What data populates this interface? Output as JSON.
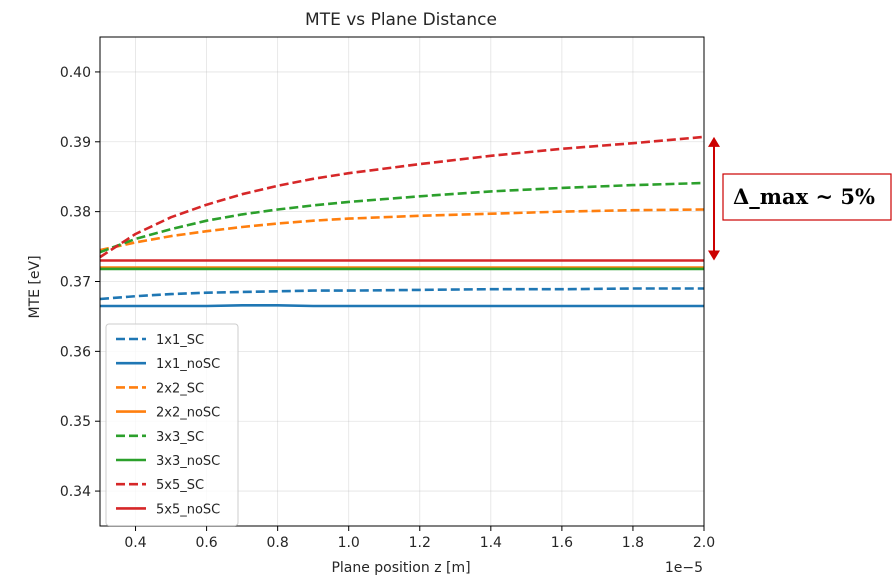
{
  "chart_data": {
    "type": "line",
    "title": "MTE vs Plane Distance",
    "xlabel": "Plane position z [m]",
    "ylabel": "MTE [eV]",
    "x_offset_label": "1e−5",
    "xlim": [
      0.3,
      2.0
    ],
    "ylim": [
      0.335,
      0.405
    ],
    "xticks": [
      0.4,
      0.6,
      0.8,
      1.0,
      1.2,
      1.4,
      1.6,
      1.8,
      2.0
    ],
    "xtick_labels": [
      "0.4",
      "0.6",
      "0.8",
      "1.0",
      "1.2",
      "1.4",
      "1.6",
      "1.8",
      "2.0"
    ],
    "yticks": [
      0.34,
      0.35,
      0.36,
      0.37,
      0.38,
      0.39,
      0.4
    ],
    "ytick_labels": [
      "0.34",
      "0.35",
      "0.36",
      "0.37",
      "0.38",
      "0.39",
      "0.40"
    ],
    "grid": true,
    "legend_position": "lower-left",
    "x": [
      0.3,
      0.4,
      0.5,
      0.6,
      0.7,
      0.8,
      0.9,
      1.0,
      1.2,
      1.4,
      1.6,
      1.8,
      2.0
    ],
    "series": [
      {
        "name": "1x1_SC",
        "color": "#1f77b4",
        "dash": "dashed",
        "values": [
          0.3675,
          0.3679,
          0.3682,
          0.3684,
          0.3685,
          0.3686,
          0.3687,
          0.3687,
          0.3688,
          0.3689,
          0.3689,
          0.369,
          0.369
        ]
      },
      {
        "name": "1x1_noSC",
        "color": "#1f77b4",
        "dash": "solid",
        "values": [
          0.3665,
          0.3665,
          0.3665,
          0.3665,
          0.3666,
          0.3666,
          0.3665,
          0.3665,
          0.3665,
          0.3665,
          0.3665,
          0.3665,
          0.3665
        ]
      },
      {
        "name": "2x2_SC",
        "color": "#ff7f0e",
        "dash": "dashed",
        "values": [
          0.3745,
          0.3756,
          0.3765,
          0.3772,
          0.3778,
          0.3783,
          0.3787,
          0.379,
          0.3794,
          0.3797,
          0.38,
          0.3802,
          0.3803
        ]
      },
      {
        "name": "2x2_noSC",
        "color": "#ff7f0e",
        "dash": "solid",
        "values": [
          0.372,
          0.372,
          0.372,
          0.372,
          0.372,
          0.372,
          0.372,
          0.372,
          0.372,
          0.372,
          0.372,
          0.372,
          0.372
        ]
      },
      {
        "name": "3x3_SC",
        "color": "#2ca02c",
        "dash": "dashed",
        "values": [
          0.3742,
          0.3761,
          0.3775,
          0.3787,
          0.3796,
          0.3803,
          0.3809,
          0.3814,
          0.3822,
          0.3829,
          0.3834,
          0.3838,
          0.3841
        ]
      },
      {
        "name": "3x3_noSC",
        "color": "#2ca02c",
        "dash": "solid",
        "values": [
          0.3718,
          0.3718,
          0.3718,
          0.3718,
          0.3718,
          0.3718,
          0.3718,
          0.3718,
          0.3718,
          0.3718,
          0.3718,
          0.3718,
          0.3718
        ]
      },
      {
        "name": "5x5_SC",
        "color": "#d62728",
        "dash": "dashed",
        "values": [
          0.3735,
          0.3768,
          0.3792,
          0.381,
          0.3825,
          0.3837,
          0.3847,
          0.3855,
          0.3868,
          0.388,
          0.389,
          0.3898,
          0.3907
        ]
      },
      {
        "name": "5x5_noSC",
        "color": "#d62728",
        "dash": "solid",
        "values": [
          0.373,
          0.373,
          0.373,
          0.373,
          0.373,
          0.373,
          0.373,
          0.373,
          0.373,
          0.373,
          0.373,
          0.373,
          0.373
        ]
      }
    ],
    "annotation": {
      "text": "Δ_max ~ 5%",
      "color": "#cc0000",
      "y_range": [
        0.373,
        0.3907
      ]
    }
  }
}
